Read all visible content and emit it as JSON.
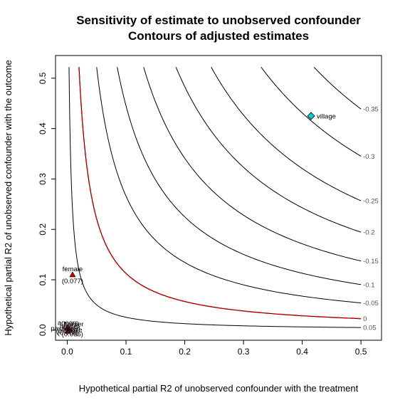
{
  "chart_data": {
    "type": "contour",
    "title": "Sensitivity of estimate to unobserved confounder",
    "subtitle": "Contours of adjusted estimates",
    "xlabel": "Hypothetical partial R2 of unobserved confounder with the treatment",
    "ylabel": "Hypothetical partial R2 of unobserved confounder with the outcome",
    "xlim": [
      -0.02,
      0.535
    ],
    "ylim": [
      -0.02,
      0.545
    ],
    "x_ticks": [
      0.0,
      0.1,
      0.2,
      0.3,
      0.4,
      0.5
    ],
    "x_tick_labels": [
      "0.0",
      "0.1",
      "0.2",
      "0.3",
      "0.4",
      "0.5"
    ],
    "y_ticks": [
      0.0,
      0.1,
      0.2,
      0.3,
      0.4,
      0.5
    ],
    "y_tick_labels": [
      "0.0",
      "0.1",
      "0.2",
      "0.3",
      "0.4",
      "0.5"
    ],
    "contours": [
      {
        "level": 0.05,
        "label": "0.05",
        "x_start": 0.003,
        "color": "#000000",
        "dashed": false
      },
      {
        "level": 0,
        "label": "0",
        "x_start": 0.02,
        "color": "#ff0000",
        "dashed": true
      },
      {
        "level": -0.05,
        "label": "-0.05",
        "x_start": 0.05,
        "color": "#000000",
        "dashed": false
      },
      {
        "level": -0.1,
        "label": "-0.1",
        "x_start": 0.085,
        "color": "#000000",
        "dashed": false
      },
      {
        "level": -0.15,
        "label": "-0.15",
        "x_start": 0.13,
        "color": "#000000",
        "dashed": false
      },
      {
        "level": -0.2,
        "label": "-0.2",
        "x_start": 0.185,
        "color": "#000000",
        "dashed": false
      },
      {
        "level": -0.25,
        "label": "-0.25",
        "x_start": 0.245,
        "color": "#000000",
        "dashed": false
      },
      {
        "level": -0.3,
        "label": "-0.3",
        "x_start": 0.33,
        "color": "#000000",
        "dashed": false
      },
      {
        "level": -0.35,
        "label": "-0.35",
        "x_start": 0.42,
        "color": "#000000",
        "dashed": false
      }
    ],
    "points": [
      {
        "name": "village",
        "x": 0.415,
        "y": 0.425,
        "label": "village",
        "value": "",
        "marker": "diamond",
        "color": "#00cfd8"
      },
      {
        "name": "female",
        "x": 0.009,
        "y": 0.11,
        "label": "female",
        "value": "(0.077)",
        "marker": "triangle",
        "color": "#cc0000"
      },
      {
        "name": "cluster-a",
        "x": 0.0,
        "y": 0.005,
        "label": "",
        "value": "",
        "marker": "triangle",
        "color": "#cc0000"
      },
      {
        "name": "cluster-b",
        "x": 0.003,
        "y": 0.002,
        "label": "",
        "value": "",
        "marker": "triangle",
        "color": "#cc0000"
      },
      {
        "name": "cluster-c",
        "x": 0.001,
        "y": -0.002,
        "label": "",
        "value": "",
        "marker": "triangle",
        "color": "#cc0000"
      }
    ],
    "cluster_text": [
      "agegrp",
      "farmer",
      "herder",
      "pastvoted",
      "hhsize",
      "(0.066)",
      "(0.056)",
      "(0.059)"
    ]
  }
}
